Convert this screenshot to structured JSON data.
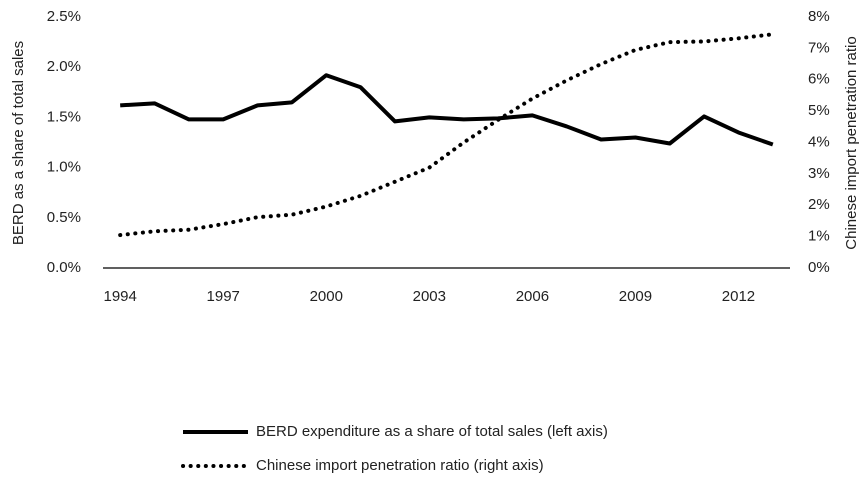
{
  "chart_data": {
    "type": "line",
    "x": [
      1994,
      1995,
      1996,
      1997,
      1998,
      1999,
      2000,
      2001,
      2002,
      2003,
      2004,
      2005,
      2006,
      2007,
      2008,
      2009,
      2010,
      2011,
      2012,
      2013
    ],
    "xlim": [
      1993.5,
      2013.5
    ],
    "xticks": [
      1994,
      1997,
      2000,
      2003,
      2006,
      2009,
      2012
    ],
    "ylabel": "BERD as a share of total sales",
    "y2label": "Chinese import penetration ratio",
    "ylim": [
      0,
      2.5
    ],
    "yticks": [
      {
        "value": 0,
        "label": "0.0%"
      },
      {
        "value": 0.5,
        "label": "0.5%"
      },
      {
        "value": 1,
        "label": "1.0%"
      },
      {
        "value": 1.5,
        "label": "1.5%"
      },
      {
        "value": 2,
        "label": "2.0%"
      },
      {
        "value": 2.5,
        "label": "2.5%"
      }
    ],
    "y2lim": [
      0,
      8
    ],
    "y2ticks": [
      {
        "value": 0,
        "label": "0%"
      },
      {
        "value": 1,
        "label": "1%"
      },
      {
        "value": 2,
        "label": "2%"
      },
      {
        "value": 3,
        "label": "3%"
      },
      {
        "value": 4,
        "label": "4%"
      },
      {
        "value": 5,
        "label": "5%"
      },
      {
        "value": 6,
        "label": "6%"
      },
      {
        "value": 7,
        "label": "7%"
      },
      {
        "value": 8,
        "label": "8%"
      }
    ],
    "legend": "bottom",
    "series": [
      {
        "name": "BERD expenditure as a share of total sales (left axis)",
        "color": "#000000",
        "style": "solid",
        "values": [
          1.62,
          1.64,
          1.48,
          1.48,
          1.62,
          1.65,
          1.92,
          1.8,
          1.46,
          1.5,
          1.48,
          1.49,
          1.52,
          1.41,
          1.28,
          1.3,
          1.24,
          1.51,
          1.35,
          1.23
        ]
      },
      {
        "name": "Chinese import penetration ratio (right axis)",
        "color": "#000000",
        "style": "dotted",
        "axis": "y2",
        "values": [
          1.05,
          1.17,
          1.22,
          1.4,
          1.62,
          1.7,
          1.96,
          2.3,
          2.75,
          3.2,
          4.0,
          4.72,
          5.4,
          5.98,
          6.5,
          6.95,
          7.2,
          7.22,
          7.32,
          7.45
        ]
      }
    ]
  }
}
